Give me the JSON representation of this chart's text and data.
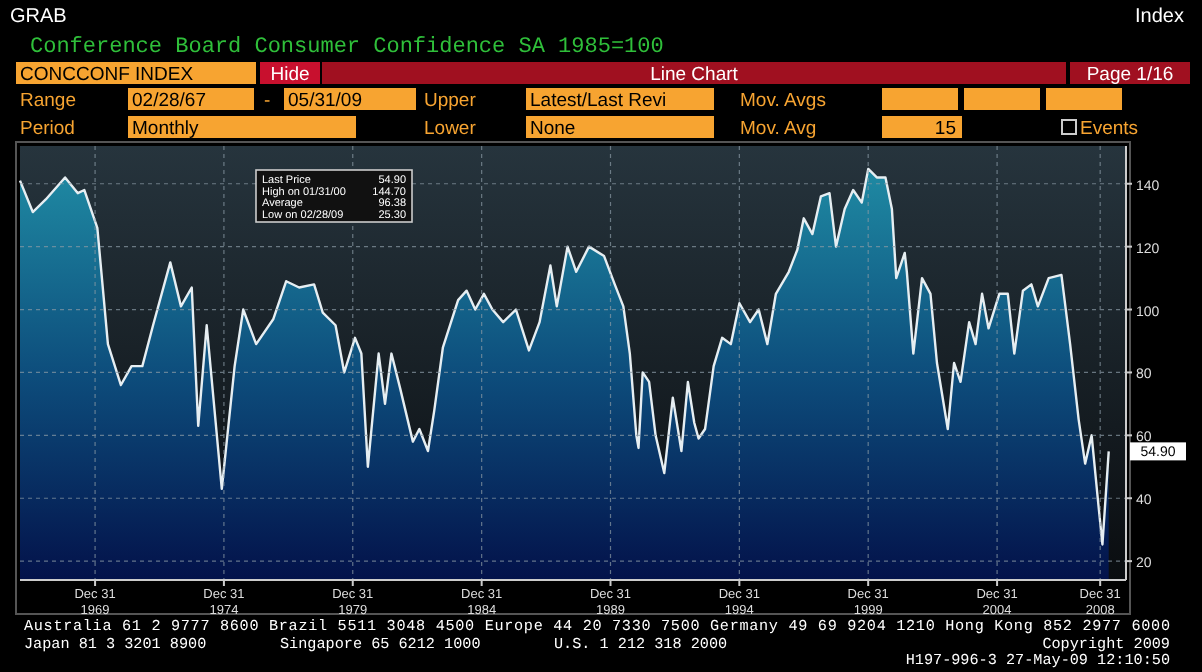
{
  "chart_data": {
    "type": "area",
    "title": "Conference Board Consumer Confidence SA 1985=100",
    "x": [
      "1967-02",
      "1967-08",
      "1968-02",
      "1968-11",
      "1969-05",
      "1969-08",
      "1970-02",
      "1970-07",
      "1971-01",
      "1971-06",
      "1971-11",
      "1972-04",
      "1972-12",
      "1973-05",
      "1973-10",
      "1974-01",
      "1974-05",
      "1974-12",
      "1975-06",
      "1975-10",
      "1976-04",
      "1976-12",
      "1977-06",
      "1977-12",
      "1978-07",
      "1978-11",
      "1979-05",
      "1979-09",
      "1980-02",
      "1980-05",
      "1980-08",
      "1981-01",
      "1981-04",
      "1981-07",
      "1981-11",
      "1982-05",
      "1982-08",
      "1982-12",
      "1983-03",
      "1983-07",
      "1984-02",
      "1984-06",
      "1984-10",
      "1985-02",
      "1985-06",
      "1985-11",
      "1986-05",
      "1986-11",
      "1987-04",
      "1987-09",
      "1987-12",
      "1988-05",
      "1988-09",
      "1989-03",
      "1989-10",
      "1990-03",
      "1990-07",
      "1990-10",
      "1991-01",
      "1991-02",
      "1991-04",
      "1991-07",
      "1991-10",
      "1992-02",
      "1992-06",
      "1992-10",
      "1993-01",
      "1993-04",
      "1993-06",
      "1993-09",
      "1994-01",
      "1994-05",
      "1994-09",
      "1995-01",
      "1995-06",
      "1995-10",
      "1996-02",
      "1996-06",
      "1996-12",
      "1997-04",
      "1997-07",
      "1997-11",
      "1998-03",
      "1998-07",
      "1998-10",
      "1999-02",
      "1999-06",
      "1999-10",
      "2000-01",
      "2000-05",
      "2000-09",
      "2000-12",
      "2001-02",
      "2001-06",
      "2001-07",
      "2001-10",
      "2002-02",
      "2002-06",
      "2002-09",
      "2003-02",
      "2003-05",
      "2003-08",
      "2003-12",
      "2004-03",
      "2004-06",
      "2004-09",
      "2005-02",
      "2005-06",
      "2005-09",
      "2006-01",
      "2006-05",
      "2006-08",
      "2007-01",
      "2007-07",
      "2007-11",
      "2008-03",
      "2008-06",
      "2008-09",
      "2008-12",
      "2009-02",
      "2009-05"
    ],
    "series": [
      {
        "color": "#e6eef2",
        "values": [
          141,
          131,
          135,
          142,
          137,
          138,
          126,
          89,
          76,
          82,
          82,
          95,
          115,
          101,
          107,
          63,
          95,
          43,
          82,
          100,
          89,
          97,
          109,
          107,
          108,
          99,
          95,
          80,
          91,
          86,
          50,
          86,
          70,
          86,
          75,
          58,
          62,
          55,
          68,
          88,
          103,
          106,
          100,
          105,
          100,
          96,
          100,
          87,
          96,
          114,
          101,
          120,
          112,
          120,
          117,
          108,
          101,
          86,
          60,
          56,
          80,
          77,
          60,
          48,
          72,
          55,
          77,
          64,
          59,
          62,
          82,
          91,
          89,
          102,
          96,
          100,
          89,
          105,
          112,
          119,
          129,
          124,
          136,
          137,
          120,
          132,
          138,
          134,
          144.7,
          142,
          142,
          132,
          110,
          118,
          112,
          86,
          110,
          105,
          83,
          62,
          83,
          77,
          96,
          89,
          105,
          94,
          105,
          105,
          86,
          106,
          108,
          101,
          110,
          111,
          89,
          65,
          51,
          60,
          39,
          25.3,
          54.9
        ]
      }
    ],
    "xlim": [
      "1967-02",
      "2010-01"
    ],
    "xticks": [
      {
        "value": "1969-12-31",
        "label": "Dec 31 1969"
      },
      {
        "value": "1974-12-31",
        "label": "Dec 31 1974"
      },
      {
        "value": "1979-12-31",
        "label": "Dec 31 1979"
      },
      {
        "value": "1984-12-31",
        "label": "Dec 31 1984"
      },
      {
        "value": "1989-12-31",
        "label": "Dec 31 1989"
      },
      {
        "value": "1994-12-31",
        "label": "Dec 31 1994"
      },
      {
        "value": "1999-12-31",
        "label": "Dec 31 1999"
      },
      {
        "value": "2004-12-31",
        "label": "Dec 31 2004"
      },
      {
        "value": "2008-12-31",
        "label": "Dec 31 2008"
      }
    ],
    "ylim": [
      14,
      152
    ],
    "yticks": [
      20,
      40,
      60,
      80,
      100,
      120,
      140
    ],
    "grid": true,
    "annotations": [
      "GRAB",
      "Index",
      "CONCCONF INDEX",
      "Hide",
      "Line Chart",
      "Page 1/16",
      "Range",
      "02/28/67",
      "-",
      "05/31/09",
      "Upper",
      "Latest/Last Revi",
      "Mov. Avgs",
      "Period",
      "Monthly",
      "Lower",
      "None",
      "Mov. Avg",
      "15",
      "Events",
      "Last Price",
      "54.90",
      "High on 01/31/00",
      "144.70",
      "Average",
      "96.38",
      "Low on 02/28/09",
      "25.30",
      {
        "text": "54.90",
        "x": "2009-05",
        "y": 54.9
      },
      "Australia 61 2 9777 8600 Brazil 5511 3048 4500 Europe 44 20 7330 7500 Germany 49 69 9204 1210 Hong Kong 852 2977 6000",
      "Japan 81 3 3201 8900",
      "Singapore 65 6212 1000",
      "U.S. 1 212 318 2000",
      "Copyright 2009",
      "H197-996-3 27-May-09 12:10:50"
    ]
  }
}
